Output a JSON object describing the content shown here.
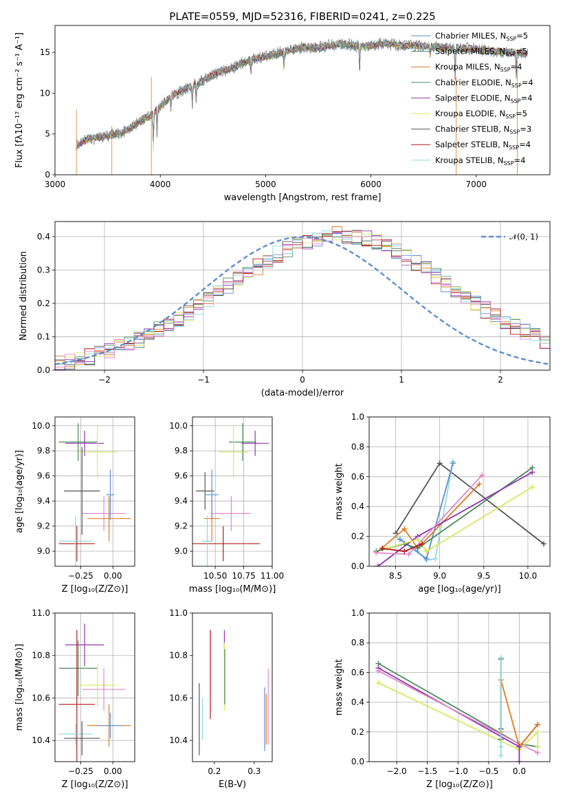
{
  "figure_title": "PLATE=0559, MJD=52316, FIBERID=0241, z=0.225",
  "colors": {
    "chabrier_miles": "#5b8ed1",
    "salpeter_miles": "#4a8a5a",
    "kroupa_miles": "#e07a1f",
    "chabrier_elodie": "#4a8a5a",
    "salpeter_elodie": "#9030b0",
    "kroupa_elodie": "#d8e860",
    "chabrier_stelib": "#555555",
    "salpeter_stelib": "#b01818",
    "kroupa_stelib": "#90d8dc",
    "pink": "#e088c8",
    "gauss": "#5b8ed1"
  },
  "chart_data": [
    {
      "id": "spectrum",
      "type": "line",
      "xlabel": "wavelength [Angstrom, rest frame]",
      "ylabel": "Flux [fλ10⁻¹⁷ erg cm⁻² s⁻¹ A⁻¹]",
      "xlim": [
        3000,
        7700
      ],
      "ylim": [
        0,
        18.3
      ],
      "xticks": [
        "3000",
        "4000",
        "5000",
        "6000",
        "7000"
      ],
      "yticks": [
        "0",
        "5",
        "10",
        "15"
      ],
      "x": [
        3200,
        3300,
        3400,
        3500,
        3600,
        3700,
        3800,
        3900,
        4000,
        4100,
        4200,
        4300,
        4400,
        4500,
        4600,
        4700,
        4800,
        4900,
        5000,
        5100,
        5200,
        5300,
        5400,
        5500,
        5600,
        5700,
        5800,
        5900,
        6000,
        6100,
        6200,
        6300,
        6400,
        6500,
        6600,
        6700,
        6800,
        6900,
        7000,
        7100,
        7200,
        7300,
        7400,
        7500
      ],
      "flux": [
        3.5,
        4.3,
        4.6,
        4.8,
        5.0,
        5.6,
        6.5,
        7.2,
        8.4,
        9.6,
        10.3,
        10.8,
        11.5,
        12.3,
        12.7,
        13.2,
        13.8,
        14.2,
        14.5,
        14.8,
        15.2,
        15.5,
        15.6,
        15.6,
        15.8,
        16.0,
        15.9,
        15.7,
        15.8,
        16.1,
        16.0,
        15.8,
        15.9,
        15.8,
        15.7,
        15.6,
        15.5,
        15.5,
        15.4,
        15.2,
        15.1,
        15.0,
        15.0,
        14.9
      ],
      "legend": [
        {
          "label": "Chabrier MILES, N",
          "sub": "SSP",
          "val": "=5",
          "color": "#5b8ed1"
        },
        {
          "label": "Salpeter MILES, N",
          "sub": "SSP",
          "val": "=5",
          "color": "#4a8a5a"
        },
        {
          "label": "Kroupa MILES, N",
          "sub": "SSP",
          "val": "=4",
          "color": "#e07a1f"
        },
        {
          "label": "Chabrier ELODIE, N",
          "sub": "SSP",
          "val": "=4",
          "color": "#4a8a5a"
        },
        {
          "label": "Salpeter ELODIE, N",
          "sub": "SSP",
          "val": "=4",
          "color": "#9030b0"
        },
        {
          "label": "Kroupa ELODIE, N",
          "sub": "SSP",
          "val": "=5",
          "color": "#d8e860"
        },
        {
          "label": "Chabrier STELIB, N",
          "sub": "SSP",
          "val": "=3",
          "color": "#555555"
        },
        {
          "label": "Salpeter STELIB, N",
          "sub": "SSP",
          "val": "=4",
          "color": "#b01818"
        },
        {
          "label": "Kroupa STELIB, N",
          "sub": "SSP",
          "val": "=4",
          "color": "#90d8dc"
        }
      ]
    },
    {
      "id": "residuals",
      "type": "histogram",
      "xlabel": "(data-model)/error",
      "ylabel": "Normed distribution",
      "xlim": [
        -2.5,
        2.5
      ],
      "ylim": [
        0,
        0.445
      ],
      "xticks": [
        "−2",
        "−1",
        "0",
        "1",
        "2"
      ],
      "yticks": [
        "0.0",
        "0.1",
        "0.2",
        "0.3",
        "0.4"
      ],
      "grid": true,
      "legend": "𝒩(0, 1)",
      "bin_width": 0.1,
      "bin_start": -2.5,
      "base": [
        0.022,
        0.028,
        0.034,
        0.041,
        0.049,
        0.058,
        0.068,
        0.08,
        0.093,
        0.107,
        0.122,
        0.138,
        0.155,
        0.173,
        0.192,
        0.211,
        0.231,
        0.251,
        0.272,
        0.292,
        0.311,
        0.33,
        0.347,
        0.362,
        0.376,
        0.387,
        0.396,
        0.402,
        0.405,
        0.404,
        0.4,
        0.393,
        0.383,
        0.37,
        0.355,
        0.338,
        0.32,
        0.3,
        0.28,
        0.259,
        0.239,
        0.219,
        0.199,
        0.18,
        0.162,
        0.145,
        0.129,
        0.114,
        0.1,
        0.087
      ]
    },
    {
      "id": "age_vs_Z",
      "type": "errorbar",
      "xlabel": "Z [log₁₀(Z/Z⊙)]",
      "ylabel": "age  [log₁₀(age/yr)]",
      "xlim": [
        -0.45,
        0.17
      ],
      "ylim": [
        8.88,
        10.07
      ],
      "xticks": [
        "−0.25",
        "0.00"
      ],
      "xtick_vals": [
        -0.25,
        0.0
      ],
      "yticks": [
        "9.0",
        "9.2",
        "9.4",
        "9.6",
        "9.8",
        "10.0"
      ],
      "ytick_vals": [
        9.0,
        9.2,
        9.4,
        9.6,
        9.8,
        10.0
      ],
      "grid": true,
      "points": [
        {
          "x": -0.27,
          "y": 9.87,
          "xerr": 0.15,
          "yerr": 0.15,
          "c": "#4a8a5a"
        },
        {
          "x": -0.22,
          "y": 9.86,
          "xerr": 0.15,
          "yerr": 0.1,
          "c": "#9030b0"
        },
        {
          "x": -0.12,
          "y": 9.79,
          "xerr": 0.15,
          "yerr": 0.21,
          "c": "#d8e860"
        },
        {
          "x": -0.28,
          "y": 9.06,
          "xerr": 0.14,
          "yerr": 0.14,
          "c": "#b01818"
        },
        {
          "x": -0.07,
          "y": 9.3,
          "xerr": 0.17,
          "yerr": 0.14,
          "c": "#e088c8"
        },
        {
          "x": -0.03,
          "y": 9.26,
          "xerr": 0.17,
          "yerr": 0.18,
          "c": "#e07a1f"
        },
        {
          "x": -0.29,
          "y": 9.08,
          "xerr": 0.13,
          "yerr": 0.2,
          "c": "#90d8dc"
        },
        {
          "x": -0.24,
          "y": 9.48,
          "xerr": 0.14,
          "yerr": 0.35,
          "c": "#555555"
        },
        {
          "x": -0.02,
          "y": 9.45,
          "xerr": 0.03,
          "yerr": 0.2,
          "c": "#5b8ed1"
        }
      ]
    },
    {
      "id": "age_vs_mass",
      "type": "errorbar",
      "xlabel": "mass [log₁₀(M/M⊙)]",
      "ylabel": "",
      "xlim": [
        10.3,
        11.0
      ],
      "ylim": [
        8.88,
        10.07
      ],
      "xticks": [
        "10.50",
        "10.75",
        "11.00"
      ],
      "xtick_vals": [
        10.5,
        10.75,
        11.0
      ],
      "yticks": [
        "9.0",
        "9.2",
        "9.4",
        "9.6",
        "9.8",
        "10.0"
      ],
      "ytick_vals": [
        9.0,
        9.2,
        9.4,
        9.6,
        9.8,
        10.0
      ],
      "grid": true,
      "points": [
        {
          "x": 10.74,
          "y": 9.87,
          "xerr": 0.12,
          "yerr": 0.15,
          "c": "#4a8a5a"
        },
        {
          "x": 10.85,
          "y": 9.86,
          "xerr": 0.12,
          "yerr": 0.1,
          "c": "#9030b0"
        },
        {
          "x": 10.66,
          "y": 9.79,
          "xerr": 0.13,
          "yerr": 0.21,
          "c": "#d8e860"
        },
        {
          "x": 10.57,
          "y": 9.06,
          "xerr": 0.32,
          "yerr": 0.14,
          "c": "#b01818"
        },
        {
          "x": 10.64,
          "y": 9.3,
          "xerr": 0.17,
          "yerr": 0.14,
          "c": "#e088c8"
        },
        {
          "x": 10.47,
          "y": 9.26,
          "xerr": 0.07,
          "yerr": 0.18,
          "c": "#e07a1f"
        },
        {
          "x": 10.43,
          "y": 9.08,
          "xerr": 0.05,
          "yerr": 0.2,
          "c": "#90d8dc"
        },
        {
          "x": 10.41,
          "y": 9.48,
          "xerr": 0.08,
          "yerr": 0.15,
          "c": "#555555"
        },
        {
          "x": 10.47,
          "y": 9.45,
          "xerr": 0.06,
          "yerr": 0.2,
          "c": "#5b8ed1"
        }
      ]
    },
    {
      "id": "weight_vs_age",
      "type": "line",
      "xlabel": "age  [log₁₀(age/yr)]",
      "ylabel": "mass weight",
      "xlim": [
        8.2,
        10.25
      ],
      "ylim": [
        0,
        1
      ],
      "xticks": [
        "8.5",
        "9.0",
        "9.5",
        "10.0"
      ],
      "xtick_vals": [
        8.5,
        9.0,
        9.5,
        10.0
      ],
      "yticks": [
        "0.0",
        "0.2",
        "0.4",
        "0.6",
        "0.8",
        "1.0"
      ],
      "ytick_vals": [
        0.0,
        0.2,
        0.4,
        0.6,
        0.8,
        1.0
      ],
      "grid": true,
      "series": [
        {
          "c": "#555555",
          "x": [
            8.5,
            9.0,
            10.18
          ],
          "y": [
            0.22,
            0.69,
            0.15
          ]
        },
        {
          "c": "#90d8dc",
          "x": [
            8.5,
            8.75,
            8.85,
            8.95,
            9.15
          ],
          "y": [
            0.2,
            0.1,
            0.04,
            0.05,
            0.7
          ]
        },
        {
          "c": "#5b8ed1",
          "x": [
            8.55,
            8.85,
            9.15
          ],
          "y": [
            0.18,
            0.05,
            0.69
          ]
        },
        {
          "c": "#e07a1f",
          "x": [
            8.28,
            8.6,
            8.75,
            9.45
          ],
          "y": [
            0.09,
            0.25,
            0.12,
            0.55
          ]
        },
        {
          "c": "#4a8a5a",
          "x": [
            8.28,
            8.6,
            8.75,
            10.05
          ],
          "y": [
            0.1,
            0.15,
            0.12,
            0.66
          ]
        },
        {
          "c": "#9030b0",
          "x": [
            8.3,
            8.75,
            10.05
          ],
          "y": [
            0.0,
            0.2,
            0.63
          ]
        },
        {
          "c": "#e088c8",
          "x": [
            8.28,
            8.65,
            9.48
          ],
          "y": [
            0.09,
            0.08,
            0.61
          ]
        },
        {
          "c": "#d8e860",
          "x": [
            8.4,
            8.75,
            8.85,
            10.05
          ],
          "y": [
            0.12,
            0.18,
            0.1,
            0.53
          ]
        },
        {
          "c": "#b01818",
          "x": [
            8.35,
            8.6,
            8.8
          ],
          "y": [
            0.12,
            0.1,
            0.15
          ]
        }
      ]
    },
    {
      "id": "mass_vs_Z",
      "type": "errorbar",
      "xlabel": "Z [log₁₀(Z/Z⊙)]",
      "ylabel": "mass [log₁₀(M/M⊙)]",
      "xlim": [
        -0.45,
        0.17
      ],
      "ylim": [
        10.3,
        11.0
      ],
      "xticks": [
        "−0.25",
        "0.00"
      ],
      "xtick_vals": [
        -0.25,
        0.0
      ],
      "yticks": [
        "10.4",
        "10.6",
        "10.8",
        "11.0"
      ],
      "ytick_vals": [
        10.4,
        10.6,
        10.8,
        11.0
      ],
      "grid": true,
      "points": [
        {
          "x": -0.27,
          "y": 10.74,
          "xerr": 0.15,
          "yerr": 0.13,
          "c": "#4a8a5a"
        },
        {
          "x": -0.22,
          "y": 10.85,
          "xerr": 0.15,
          "yerr": 0.1,
          "c": "#9030b0"
        },
        {
          "x": -0.12,
          "y": 10.66,
          "xerr": 0.15,
          "yerr": 0.1,
          "c": "#d8e860"
        },
        {
          "x": -0.28,
          "y": 10.57,
          "xerr": 0.14,
          "yerr": 0.35,
          "c": "#b01818"
        },
        {
          "x": -0.07,
          "y": 10.64,
          "xerr": 0.17,
          "yerr": 0.1,
          "c": "#e088c8"
        },
        {
          "x": -0.03,
          "y": 10.47,
          "xerr": 0.17,
          "yerr": 0.1,
          "c": "#e07a1f"
        },
        {
          "x": -0.29,
          "y": 10.43,
          "xerr": 0.13,
          "yerr": 0.05,
          "c": "#90d8dc"
        },
        {
          "x": -0.24,
          "y": 10.41,
          "xerr": 0.14,
          "yerr": 0.08,
          "c": "#555555"
        },
        {
          "x": -0.02,
          "y": 10.47,
          "xerr": 0.1,
          "yerr": 0.06,
          "c": "#5b8ed1"
        }
      ]
    },
    {
      "id": "mass_vs_ebv",
      "type": "errorbar",
      "xlabel": "E(B-V)",
      "ylabel": "",
      "xlim": [
        0.145,
        0.345
      ],
      "ylim": [
        10.3,
        11.0
      ],
      "xticks": [
        "0.2",
        "0.3"
      ],
      "xtick_vals": [
        0.2,
        0.3
      ],
      "yticks": [
        "10.4",
        "10.6",
        "10.8",
        "11.0"
      ],
      "ytick_vals": [
        10.4,
        10.6,
        10.8,
        11.0
      ],
      "grid": false,
      "points": [
        {
          "x": 0.162,
          "y": 10.5,
          "xerr": 0,
          "yerr": 0.17,
          "c": "#555555"
        },
        {
          "x": 0.17,
          "y": 10.5,
          "xerr": 0,
          "yerr": 0.1,
          "c": "#90d8dc"
        },
        {
          "x": 0.19,
          "y": 10.71,
          "xerr": 0,
          "yerr": 0.21,
          "c": "#b01818"
        },
        {
          "x": 0.225,
          "y": 10.86,
          "xerr": 0,
          "yerr": 0.06,
          "c": "#9030b0"
        },
        {
          "x": 0.225,
          "y": 10.7,
          "xerr": 0,
          "yerr": 0.16,
          "c": "#d8e860"
        },
        {
          "x": 0.226,
          "y": 10.7,
          "xerr": 0,
          "yerr": 0.13,
          "c": "#4a8a5a"
        },
        {
          "x": 0.326,
          "y": 10.5,
          "xerr": 0,
          "yerr": 0.15,
          "c": "#5b8ed1"
        },
        {
          "x": 0.33,
          "y": 10.5,
          "xerr": 0,
          "yerr": 0.12,
          "c": "#e07a1f"
        },
        {
          "x": 0.335,
          "y": 10.56,
          "xerr": 0,
          "yerr": 0.18,
          "c": "#e088c8"
        }
      ]
    },
    {
      "id": "weight_vs_Z",
      "type": "line",
      "xlabel": "Z [log₁₀(Z/Z⊙)]",
      "ylabel": "mass weight",
      "xlim": [
        -2.45,
        0.5
      ],
      "ylim": [
        0,
        1
      ],
      "xticks": [
        "−2.0",
        "−1.5",
        "−1.0",
        "−0.5",
        "0.0"
      ],
      "xtick_vals": [
        -2.0,
        -1.5,
        -1.0,
        -0.5,
        0.0
      ],
      "yticks": [
        "0.0",
        "0.2",
        "0.4",
        "0.6",
        "0.8",
        "1.0"
      ],
      "ytick_vals": [
        0.0,
        0.2,
        0.4,
        0.6,
        0.8,
        1.0
      ],
      "grid": true,
      "series": [
        {
          "c": "#4a8a5a",
          "x": [
            -2.3,
            0.0,
            0.3
          ],
          "y": [
            0.66,
            0.12,
            0.1
          ]
        },
        {
          "c": "#9030b0",
          "x": [
            -2.3,
            0.0,
            0.3
          ],
          "y": [
            0.63,
            0.1,
            0.25
          ]
        },
        {
          "c": "#e088c8",
          "x": [
            -2.3,
            0.0,
            0.3
          ],
          "y": [
            0.61,
            0.12,
            0.06
          ]
        },
        {
          "c": "#d8e860",
          "x": [
            -2.3,
            0.0,
            0.3,
            0.3
          ],
          "y": [
            0.53,
            0.08,
            0.2,
            0.1
          ]
        },
        {
          "c": "#e07a1f",
          "x": [
            -0.3,
            -0.3,
            0.0,
            0.3
          ],
          "y": [
            0.2,
            0.55,
            0.1,
            0.25
          ]
        },
        {
          "c": "#555555",
          "x": [
            -0.3,
            -0.3,
            -0.3
          ],
          "y": [
            0.15,
            0.69,
            0.22
          ]
        },
        {
          "c": "#90d8dc",
          "x": [
            -0.3,
            -0.3,
            -0.3
          ],
          "y": [
            0.04,
            0.7,
            0.1
          ]
        },
        {
          "c": "#9030b0",
          "x": [
            0.0,
            0.0
          ],
          "y": [
            0.0,
            0.1
          ]
        }
      ]
    }
  ]
}
